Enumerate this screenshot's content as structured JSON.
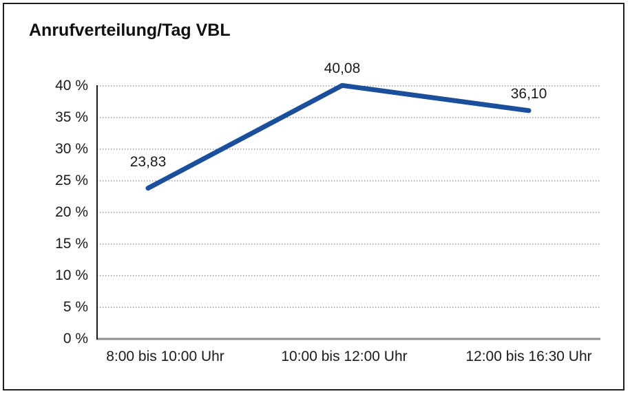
{
  "chart_data": {
    "type": "line",
    "title": "Anrufverteilung/Tag VBL",
    "categories": [
      "8:00 bis 10:00 Uhr",
      "10:00 bis 12:00 Uhr",
      "12:00 bis 16:30 Uhr"
    ],
    "values": [
      23.83,
      40.08,
      36.1
    ],
    "data_labels": [
      "23,83",
      "40,08",
      "36,10"
    ],
    "yticks": [
      "0 %",
      "5 %",
      "10 %",
      "15 %",
      "20 %",
      "25 %",
      "30 %",
      "35 %",
      "40 %"
    ],
    "ylim": [
      0,
      40
    ],
    "ytick_step": 5,
    "xlabel": "",
    "ylabel": "",
    "grid": "horizontal-dotted",
    "legend": "none",
    "line_color": "#1B4F9B",
    "gridline_color": "#6b6b6b",
    "axis_color": "#1a1a1a",
    "baseline_color": "#8f8f8f",
    "text_color": "#1a1a1a"
  }
}
